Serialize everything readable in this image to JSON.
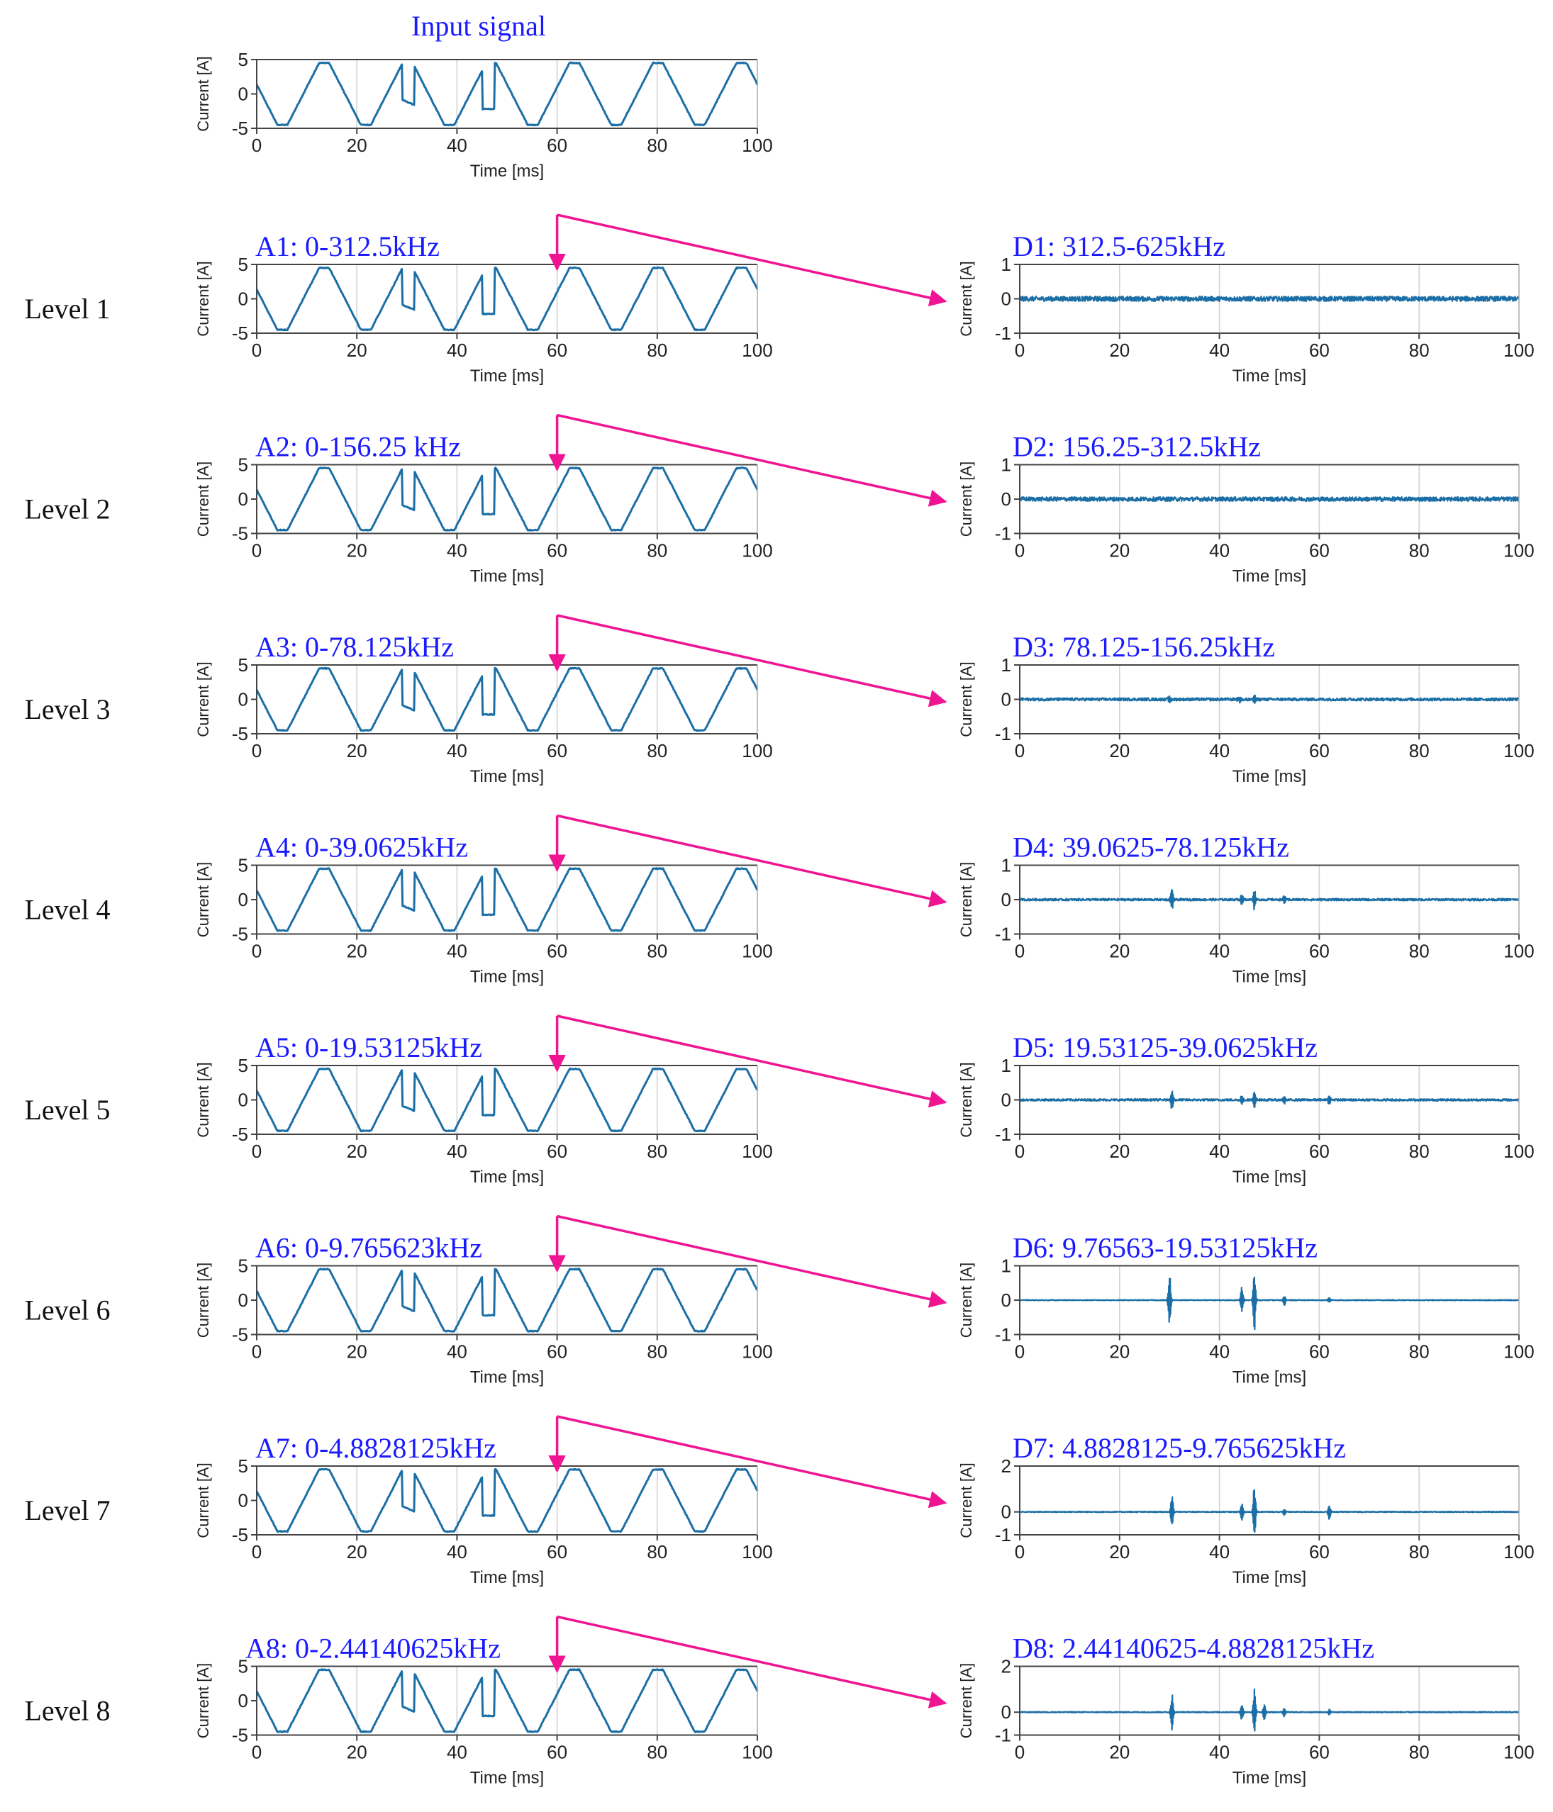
{
  "figure": {
    "input_title": "Input signal",
    "colors": {
      "signal": "#1b6fa6",
      "title": "#1a1aff",
      "arrow": "#f01493",
      "axis": "#444444",
      "grid": "#d0d0d0"
    }
  },
  "chart_data": [
    {
      "id": "input",
      "type": "line",
      "title": "Input signal",
      "level": "",
      "xlabel": "Time [ms]",
      "ylabel": "Current [A]",
      "xlim": [
        0,
        100
      ],
      "ylim": [
        -5,
        5
      ],
      "xticks": [
        0,
        20,
        40,
        60,
        80,
        100
      ],
      "yticks": [
        5,
        0,
        -5
      ],
      "xtick_labels": [
        "0",
        "20",
        "40",
        "60",
        "80",
        "100"
      ],
      "ytick_labels": [
        "5",
        "0",
        "-5"
      ],
      "grid": "vertical",
      "signal": "trapezoidal wave, period ~16.7 ms, amplitude ~4.5 A, steps near 30 ms and 47 ms"
    },
    {
      "id": "A1",
      "type": "line",
      "level": "Level 1",
      "title": "A1: 0-312.5kHz",
      "xlabel": "Time [ms]",
      "ylabel": "Current [A]",
      "xlim": [
        0,
        100
      ],
      "ylim": [
        -5,
        5
      ],
      "xticks": [
        0,
        20,
        40,
        60,
        80,
        100
      ],
      "yticks": [
        5,
        0,
        -5
      ],
      "xtick_labels": [
        "0",
        "20",
        "40",
        "60",
        "80",
        "100"
      ],
      "ytick_labels": [
        "5",
        "0",
        "-5"
      ],
      "grid": "vertical"
    },
    {
      "id": "D1",
      "type": "line",
      "level": "Level 1",
      "title": "D1: 312.5-625kHz",
      "xlabel": "Time [ms]",
      "ylabel": "Current [A]",
      "xlim": [
        0,
        100
      ],
      "ylim": [
        -1,
        1
      ],
      "xticks": [
        0,
        20,
        40,
        60,
        80,
        100
      ],
      "yticks": [
        1,
        0,
        -1
      ],
      "xtick_labels": [
        "0",
        "20",
        "40",
        "60",
        "80",
        "100"
      ],
      "ytick_labels": [
        "1",
        "0",
        "-1"
      ],
      "grid": "vertical",
      "noise_amplitude": 0.07,
      "spikes": []
    },
    {
      "id": "A2",
      "type": "line",
      "level": "Level 2",
      "title": "A2: 0-156.25 kHz",
      "xlabel": "Time [ms]",
      "ylabel": "Current [A]",
      "xlim": [
        0,
        100
      ],
      "ylim": [
        -5,
        5
      ],
      "xticks": [
        0,
        20,
        40,
        60,
        80,
        100
      ],
      "yticks": [
        5,
        0,
        -5
      ],
      "xtick_labels": [
        "0",
        "20",
        "40",
        "60",
        "80",
        "100"
      ],
      "ytick_labels": [
        "5",
        "0",
        "-5"
      ],
      "grid": "vertical"
    },
    {
      "id": "D2",
      "type": "line",
      "level": "Level 2",
      "title": "D2: 156.25-312.5kHz",
      "xlabel": "Time [ms]",
      "ylabel": "Current [A]",
      "xlim": [
        0,
        100
      ],
      "ylim": [
        -1,
        1
      ],
      "xticks": [
        0,
        20,
        40,
        60,
        80,
        100
      ],
      "yticks": [
        1,
        0,
        -1
      ],
      "xtick_labels": [
        "0",
        "20",
        "40",
        "60",
        "80",
        "100"
      ],
      "ytick_labels": [
        "1",
        "0",
        "-1"
      ],
      "grid": "vertical",
      "noise_amplitude": 0.06,
      "spikes": []
    },
    {
      "id": "A3",
      "type": "line",
      "level": "Level 3",
      "title": "A3: 0-78.125kHz",
      "xlabel": "Time [ms]",
      "ylabel": "Current [A]",
      "xlim": [
        0,
        100
      ],
      "ylim": [
        -5,
        5
      ],
      "xticks": [
        0,
        20,
        40,
        60,
        80,
        100
      ],
      "yticks": [
        5,
        0,
        -5
      ],
      "xtick_labels": [
        "0",
        "20",
        "40",
        "60",
        "80",
        "100"
      ],
      "ytick_labels": [
        "5",
        "0",
        "-5"
      ],
      "grid": "vertical"
    },
    {
      "id": "D3",
      "type": "line",
      "level": "Level 3",
      "title": "D3: 78.125-156.25kHz",
      "xlabel": "Time [ms]",
      "ylabel": "Current [A]",
      "xlim": [
        0,
        100
      ],
      "ylim": [
        -1,
        1
      ],
      "xticks": [
        0,
        20,
        40,
        60,
        80,
        100
      ],
      "yticks": [
        1,
        0,
        -1
      ],
      "xtick_labels": [
        "0",
        "20",
        "40",
        "60",
        "80",
        "100"
      ],
      "ytick_labels": [
        "1",
        "0",
        "-1"
      ],
      "grid": "vertical",
      "noise_amplitude": 0.04,
      "spikes": [
        [
          30,
          0.12
        ],
        [
          44,
          0.12
        ],
        [
          47,
          0.15
        ]
      ]
    },
    {
      "id": "A4",
      "type": "line",
      "level": "Level 4",
      "title": "A4: 0-39.0625kHz",
      "xlabel": "Time [ms]",
      "ylabel": "Current [A]",
      "xlim": [
        0,
        100
      ],
      "ylim": [
        -5,
        5
      ],
      "xticks": [
        0,
        20,
        40,
        60,
        80,
        100
      ],
      "yticks": [
        5,
        0,
        -5
      ],
      "xtick_labels": [
        "0",
        "20",
        "40",
        "60",
        "80",
        "100"
      ],
      "ytick_labels": [
        "5",
        "0",
        "-5"
      ],
      "grid": "vertical"
    },
    {
      "id": "D4",
      "type": "line",
      "level": "Level 4",
      "title": "D4: 39.0625-78.125kHz",
      "xlabel": "Time [ms]",
      "ylabel": "Current [A]",
      "xlim": [
        0,
        100
      ],
      "ylim": [
        -1,
        1
      ],
      "xticks": [
        0,
        20,
        40,
        60,
        80,
        100
      ],
      "yticks": [
        1,
        0,
        -1
      ],
      "xtick_labels": [
        "0",
        "20",
        "40",
        "60",
        "80",
        "100"
      ],
      "ytick_labels": [
        "1",
        "0",
        "-1"
      ],
      "grid": "vertical",
      "noise_amplitude": 0.03,
      "spikes": [
        [
          30.5,
          0.3
        ],
        [
          44.5,
          0.2
        ],
        [
          47,
          0.3
        ],
        [
          53,
          0.12
        ]
      ]
    },
    {
      "id": "A5",
      "type": "line",
      "level": "Level 5",
      "title": "A5: 0-19.53125kHz",
      "xlabel": "Time [ms]",
      "ylabel": "Current [A]",
      "xlim": [
        0,
        100
      ],
      "ylim": [
        -5,
        5
      ],
      "xticks": [
        0,
        20,
        40,
        60,
        80,
        100
      ],
      "yticks": [
        5,
        0,
        -5
      ],
      "xtick_labels": [
        "0",
        "20",
        "40",
        "60",
        "80",
        "100"
      ],
      "ytick_labels": [
        "5",
        "0",
        "-5"
      ],
      "grid": "vertical"
    },
    {
      "id": "D5",
      "type": "line",
      "level": "Level 5",
      "title": "D5: 19.53125-39.0625kHz",
      "xlabel": "Time [ms]",
      "ylabel": "Current [A]",
      "xlim": [
        0,
        100
      ],
      "ylim": [
        -1,
        1
      ],
      "xticks": [
        0,
        20,
        40,
        60,
        80,
        100
      ],
      "yticks": [
        1,
        0,
        -1
      ],
      "xtick_labels": [
        "0",
        "20",
        "40",
        "60",
        "80",
        "100"
      ],
      "ytick_labels": [
        "1",
        "0",
        "-1"
      ],
      "grid": "vertical",
      "noise_amplitude": 0.03,
      "spikes": [
        [
          30.5,
          0.3
        ],
        [
          44.5,
          0.15
        ],
        [
          47,
          0.25
        ],
        [
          53,
          0.1
        ],
        [
          62,
          0.15
        ]
      ]
    },
    {
      "id": "A6",
      "type": "line",
      "level": "Level 6",
      "title": "A6: 0-9.765623kHz",
      "xlabel": "Time [ms]",
      "ylabel": "Current [A]",
      "xlim": [
        0,
        100
      ],
      "ylim": [
        -5,
        5
      ],
      "xticks": [
        0,
        20,
        40,
        60,
        80,
        100
      ],
      "yticks": [
        5,
        0,
        -5
      ],
      "xtick_labels": [
        "0",
        "20",
        "40",
        "60",
        "80",
        "100"
      ],
      "ytick_labels": [
        "5",
        "0",
        "-5"
      ],
      "grid": "vertical"
    },
    {
      "id": "D6",
      "type": "line",
      "level": "Level 6",
      "title": "D6: 9.76563-19.53125kHz",
      "xlabel": "Time [ms]",
      "ylabel": "Current [A]",
      "xlim": [
        0,
        100
      ],
      "ylim": [
        -1,
        1
      ],
      "xticks": [
        0,
        20,
        40,
        60,
        80,
        100
      ],
      "yticks": [
        1,
        0,
        -1
      ],
      "xtick_labels": [
        "0",
        "20",
        "40",
        "60",
        "80",
        "100"
      ],
      "ytick_labels": [
        "1",
        "0",
        "-1"
      ],
      "grid": "vertical",
      "noise_amplitude": 0.01,
      "spikes": [
        [
          30,
          0.85
        ],
        [
          44.5,
          0.4
        ],
        [
          47,
          0.9
        ],
        [
          53,
          0.15
        ],
        [
          62,
          0.08
        ]
      ]
    },
    {
      "id": "A7",
      "type": "line",
      "level": "Level 7",
      "title": "A7: 0-4.8828125kHz",
      "xlabel": "Time [ms]",
      "ylabel": "Current [A]",
      "xlim": [
        0,
        100
      ],
      "ylim": [
        -5,
        5
      ],
      "xticks": [
        0,
        20,
        40,
        60,
        80,
        100
      ],
      "yticks": [
        5,
        0,
        -5
      ],
      "xtick_labels": [
        "0",
        "20",
        "40",
        "60",
        "80",
        "100"
      ],
      "ytick_labels": [
        "5",
        "0",
        "-5"
      ],
      "grid": "vertical"
    },
    {
      "id": "D7",
      "type": "line",
      "level": "Level 7",
      "title": "D7: 4.8828125-9.765625kHz",
      "xlabel": "Time [ms]",
      "ylabel": "Current [A]",
      "xlim": [
        0,
        100
      ],
      "ylim": [
        -1,
        2
      ],
      "xticks": [
        0,
        20,
        40,
        60,
        80,
        100
      ],
      "yticks": [
        2,
        0,
        -1
      ],
      "xtick_labels": [
        "0",
        "20",
        "40",
        "60",
        "80",
        "100"
      ],
      "ytick_labels": [
        "2",
        "0",
        "-1"
      ],
      "grid": "vertical",
      "noise_amplitude": 0.02,
      "spikes": [
        [
          30.5,
          0.8
        ],
        [
          44.5,
          0.4
        ],
        [
          47,
          1.2
        ],
        [
          53,
          0.15
        ],
        [
          62,
          0.35
        ]
      ]
    },
    {
      "id": "A8",
      "type": "line",
      "level": "Level 8",
      "title": "A8: 0-2.44140625kHz",
      "xlabel": "Time [ms]",
      "ylabel": "Current [A]",
      "xlim": [
        0,
        100
      ],
      "ylim": [
        -5,
        5
      ],
      "xticks": [
        0,
        20,
        40,
        60,
        80,
        100
      ],
      "yticks": [
        5,
        0,
        -5
      ],
      "xtick_labels": [
        "0",
        "20",
        "40",
        "60",
        "80",
        "100"
      ],
      "ytick_labels": [
        "5",
        "0",
        "-5"
      ],
      "grid": "vertical"
    },
    {
      "id": "D8",
      "type": "line",
      "level": "Level 8",
      "title": "D8: 2.44140625-4.8828125kHz",
      "xlabel": "Time [ms]",
      "ylabel": "Current [A]",
      "xlim": [
        0,
        100
      ],
      "ylim": [
        -1,
        2
      ],
      "xticks": [
        0,
        20,
        40,
        60,
        80,
        100
      ],
      "yticks": [
        2,
        0,
        -1
      ],
      "xtick_labels": [
        "0",
        "20",
        "40",
        "60",
        "80",
        "100"
      ],
      "ytick_labels": [
        "2",
        "0",
        "-1"
      ],
      "grid": "vertical",
      "noise_amplitude": 0.02,
      "spikes": [
        [
          30.5,
          0.8
        ],
        [
          44.5,
          0.4
        ],
        [
          47,
          1.0
        ],
        [
          49,
          0.35
        ],
        [
          53,
          0.2
        ],
        [
          62,
          0.12
        ]
      ]
    }
  ]
}
